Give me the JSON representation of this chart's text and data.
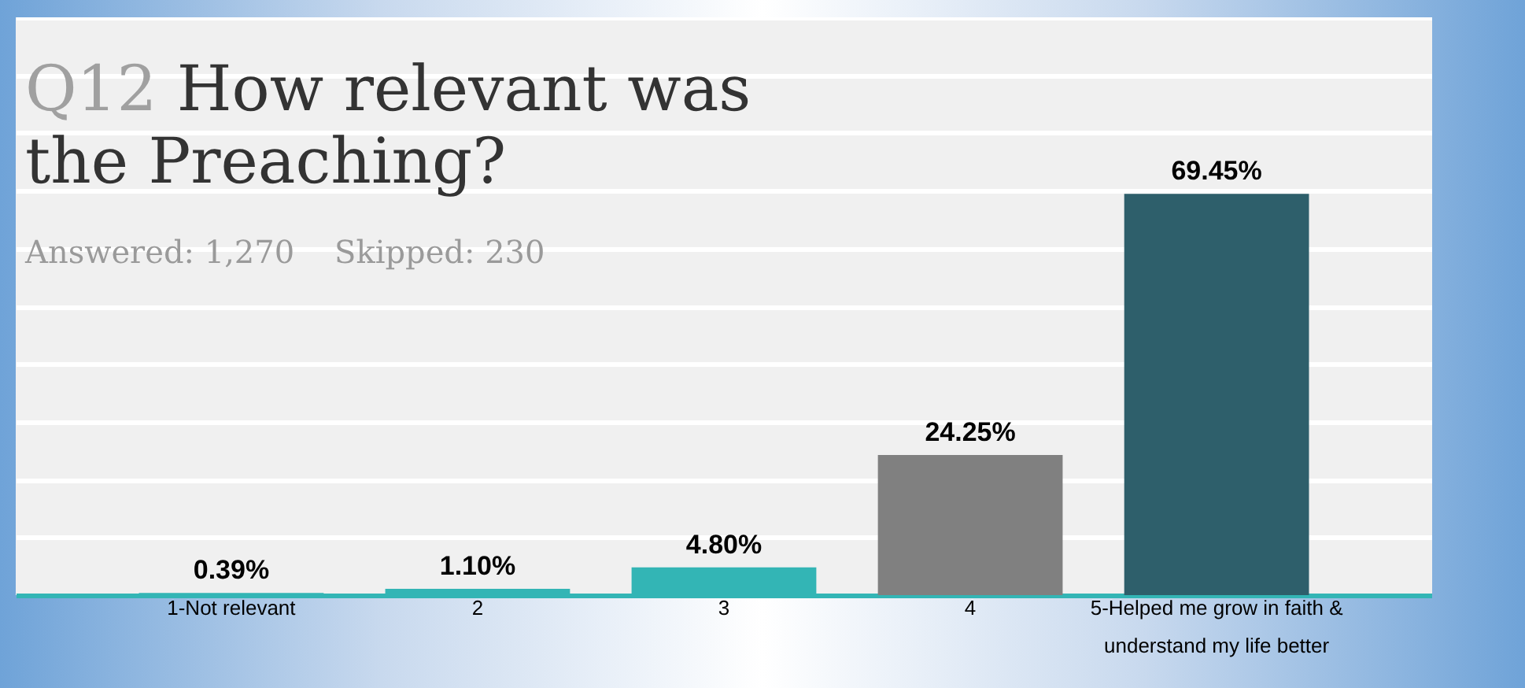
{
  "chart_data": {
    "type": "bar",
    "title": "Q12 How relevant was the Preaching?",
    "subtitle": "Answered: 1,270    Skipped: 230",
    "categories": [
      "1-Not relevant",
      "2",
      "3",
      "4",
      "5-Helped me grow in faith & understand my life better"
    ],
    "values": [
      0.39,
      1.1,
      4.8,
      24.25,
      69.45
    ],
    "colors": [
      "#33b5b5",
      "#33b5b5",
      "#33b5b5",
      "#808080",
      "#2e5f6b"
    ],
    "value_labels": [
      "0.39%",
      "1.10%",
      "4.80%",
      "24.25%",
      "69.45%"
    ],
    "ylim": [
      0,
      100
    ],
    "yticks": [
      0,
      10,
      20,
      30,
      40,
      50,
      60,
      70,
      80,
      90,
      100
    ],
    "grid": "y",
    "tick_labels": "x"
  }
}
